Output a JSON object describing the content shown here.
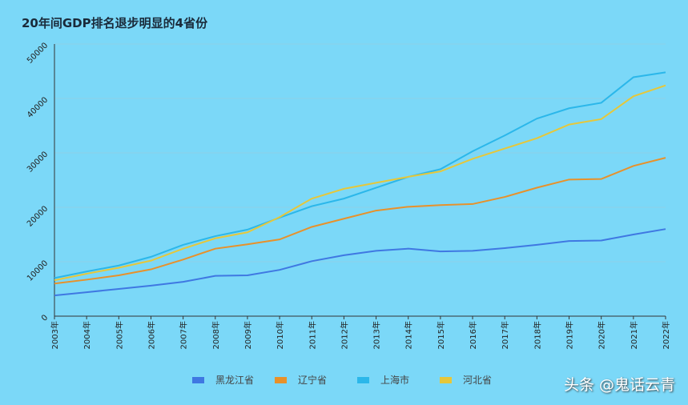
{
  "chart_data": {
    "type": "line",
    "title": "20年间GDP排名退步明显的4省份",
    "xlabel": "",
    "ylabel": "",
    "ylim": [
      0,
      50000
    ],
    "yticks": [
      "0",
      "10000",
      "20000",
      "30000",
      "40000",
      "50000"
    ],
    "categories": [
      "2003年",
      "2004年",
      "2005年",
      "2006年",
      "2007年",
      "2008年",
      "2009年",
      "2010年",
      "2011年",
      "2012年",
      "2013年",
      "2014年",
      "2015年",
      "2016年",
      "2017年",
      "2018年",
      "2019年",
      "2020年",
      "2021年",
      "2022年"
    ],
    "legend_position": "bottom",
    "grid": true,
    "series": [
      {
        "name": "黑龙江省",
        "color": "#3f78e2",
        "values": [
          3800,
          4400,
          5000,
          5600,
          6300,
          7400,
          7500,
          8500,
          10100,
          11200,
          12000,
          12400,
          11900,
          12000,
          12500,
          13100,
          13800,
          13900,
          15000,
          16000
        ]
      },
      {
        "name": "辽宁省",
        "color": "#e8912a",
        "values": [
          6000,
          6700,
          7500,
          8600,
          10400,
          12400,
          13200,
          14100,
          16400,
          17900,
          19400,
          20100,
          20400,
          20600,
          21900,
          23600,
          25100,
          25200,
          27600,
          29100
        ]
      },
      {
        "name": "上海市",
        "color": "#2bb7ea",
        "values": [
          7000,
          8200,
          9300,
          10900,
          13100,
          14700,
          15900,
          18100,
          20200,
          21600,
          23600,
          25600,
          27000,
          30300,
          33200,
          36300,
          38200,
          39200,
          43900,
          44800
        ]
      },
      {
        "name": "河北省",
        "color": "#e6c73a",
        "values": [
          6600,
          7800,
          8900,
          10200,
          12400,
          14300,
          15400,
          18200,
          21600,
          23400,
          24500,
          25600,
          26600,
          28900,
          30800,
          32700,
          35200,
          36200,
          40400,
          42400
        ]
      }
    ]
  },
  "watermark": "头条 @鬼话云青"
}
